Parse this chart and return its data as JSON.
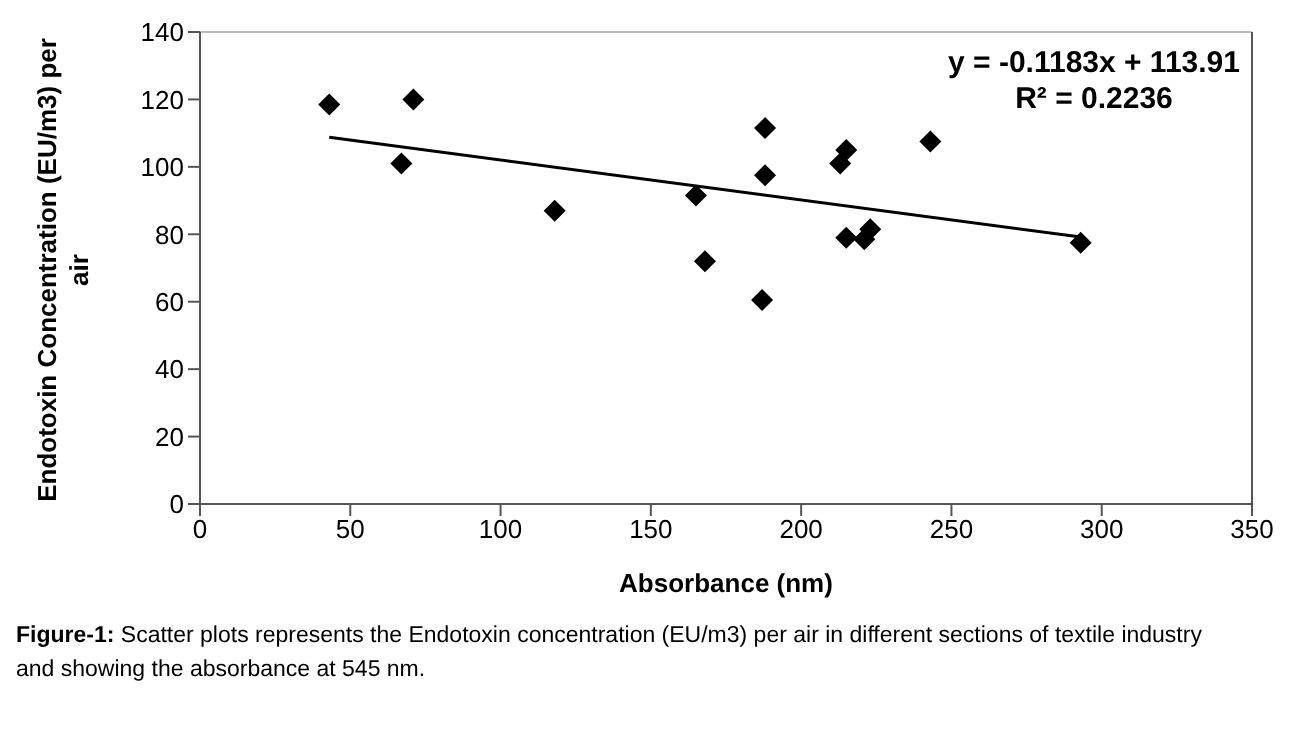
{
  "chart_data": {
    "type": "scatter",
    "xlabel": "Absorbance (nm)",
    "ylabel": "Endotoxin Concentration (EU/m3) per air",
    "xlim": [
      0,
      350
    ],
    "ylim": [
      0,
      140
    ],
    "xticks": [
      0,
      50,
      100,
      150,
      200,
      250,
      300,
      350
    ],
    "yticks": [
      0,
      20,
      40,
      60,
      80,
      100,
      120,
      140
    ],
    "series": [
      {
        "color": "#000000",
        "marker": "diamond",
        "x": [
          43,
          67,
          71,
          118,
          165,
          168,
          187,
          188,
          188,
          213,
          215,
          215,
          221,
          223,
          243,
          293
        ],
        "values": [
          118.5,
          101,
          120,
          87,
          91.5,
          72,
          60.5,
          111.5,
          97.5,
          101,
          105,
          79,
          78.5,
          81.5,
          107.5,
          77.5
        ]
      },
      {
        "type": "line",
        "marker": "none",
        "color": "#000000",
        "x": [
          43,
          293
        ],
        "values": [
          108.8,
          79.2
        ]
      }
    ],
    "annotations": [
      "y = -0.1183x + 113.91",
      "R² = 0.2236",
      "Figure-1: Scatter plots represents the Endotoxin concentration (EU/m3) per air in different sections of textile industry and showing the absorbance at 545 nm."
    ]
  }
}
